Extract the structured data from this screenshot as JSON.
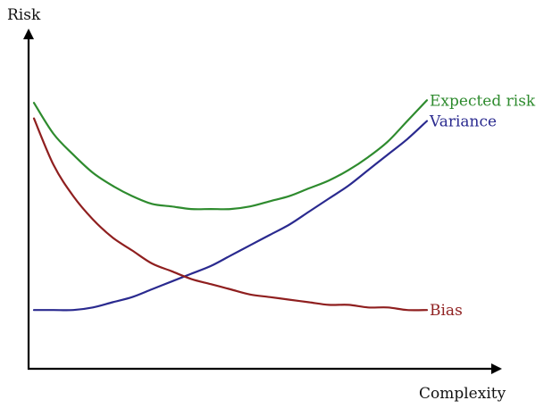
{
  "chart_data": {
    "type": "line",
    "title": "",
    "xlabel": "Complexity",
    "ylabel": "Risk",
    "ticks": "none",
    "grid": false,
    "legend": "inline-labels-at-right",
    "x": [
      0.0,
      0.05,
      0.1,
      0.15,
      0.2,
      0.25,
      0.3,
      0.35,
      0.4,
      0.45,
      0.5,
      0.55,
      0.6,
      0.65,
      0.7,
      0.75,
      0.8,
      0.85,
      0.9,
      0.95,
      1.0
    ],
    "series": [
      {
        "name": "Expected risk",
        "color": "#2e8b2e",
        "values": [
          0.92,
          0.8,
          0.72,
          0.65,
          0.6,
          0.56,
          0.53,
          0.52,
          0.51,
          0.51,
          0.51,
          0.52,
          0.54,
          0.56,
          0.59,
          0.62,
          0.66,
          0.71,
          0.77,
          0.85,
          0.93
        ]
      },
      {
        "name": "Variance",
        "color": "#2a2a8f",
        "values": [
          0.12,
          0.12,
          0.12,
          0.13,
          0.15,
          0.17,
          0.2,
          0.23,
          0.26,
          0.29,
          0.33,
          0.37,
          0.41,
          0.45,
          0.5,
          0.55,
          0.6,
          0.66,
          0.72,
          0.78,
          0.85
        ]
      },
      {
        "name": "Bias",
        "color": "#8f1f1f",
        "values": [
          0.86,
          0.68,
          0.56,
          0.47,
          0.4,
          0.35,
          0.3,
          0.27,
          0.24,
          0.22,
          0.2,
          0.18,
          0.17,
          0.16,
          0.15,
          0.14,
          0.14,
          0.13,
          0.13,
          0.12,
          0.12
        ]
      }
    ],
    "xlim": [
      0,
      1
    ],
    "ylim": [
      0,
      1
    ]
  }
}
